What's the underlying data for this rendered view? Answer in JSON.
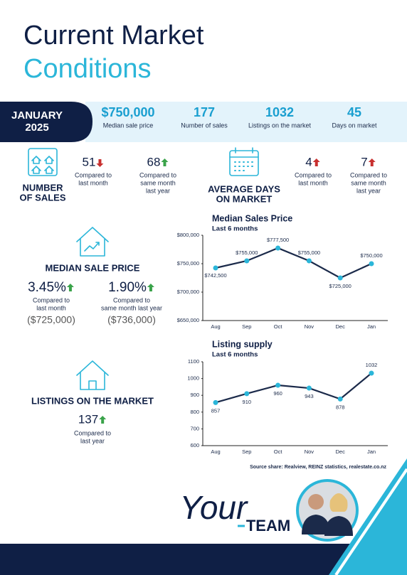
{
  "header": {
    "title_line1": "Current Market",
    "title_line2": "Conditions"
  },
  "banner": {
    "month": "JANUARY",
    "year": "2025",
    "stats": [
      {
        "value": "$750,000",
        "label": "Median sale price"
      },
      {
        "value": "177",
        "label": "Number of sales"
      },
      {
        "value": "1032",
        "label": "Listings on the market"
      },
      {
        "value": "45",
        "label": "Days on market"
      }
    ]
  },
  "number_of_sales": {
    "heading": [
      "NUMBER",
      "OF SALES"
    ],
    "items": [
      {
        "value": "51",
        "trend": "down",
        "color": "#c8302f",
        "caption": [
          "Compared to",
          "last month"
        ]
      },
      {
        "value": "68",
        "trend": "up",
        "color": "#3aa34a",
        "caption": [
          "Compared to",
          "same month",
          "last year"
        ]
      }
    ]
  },
  "average_days": {
    "heading": [
      "AVERAGE DAYS",
      "ON MARKET"
    ],
    "items": [
      {
        "value": "4",
        "trend": "up",
        "color": "#c8302f",
        "caption": [
          "Compared to",
          "last month"
        ]
      },
      {
        "value": "7",
        "trend": "up",
        "color": "#c8302f",
        "caption": [
          "Compared to",
          "same month",
          "last year"
        ]
      }
    ]
  },
  "median_sale_price": {
    "heading": [
      "MEDIAN SALE PRICE"
    ],
    "items": [
      {
        "value": "3.45%",
        "trend": "up",
        "color": "#3aa34a",
        "caption": [
          "Compared to",
          "last month"
        ],
        "note": "($725,000)"
      },
      {
        "value": "1.90%",
        "trend": "up",
        "color": "#3aa34a",
        "caption": [
          "Compared to",
          "same month last year"
        ],
        "note": "($736,000)"
      }
    ]
  },
  "listings": {
    "heading": [
      "LISTINGS ON THE MARKET"
    ],
    "items": [
      {
        "value": "137",
        "trend": "up",
        "color": "#3aa34a",
        "caption": [
          "Compared to",
          "last year"
        ]
      }
    ]
  },
  "chart_data": [
    {
      "type": "line",
      "title": "Median Sales Price",
      "subtitle": "Last 6 months",
      "categories": [
        "Aug",
        "Sep",
        "Oct",
        "Nov",
        "Dec",
        "Jan"
      ],
      "values": [
        742500,
        755000,
        777500,
        755000,
        725000,
        750000
      ],
      "value_labels": [
        "$742,500",
        "$755,000",
        "$777,500",
        "$755,000",
        "$725,000",
        "$750,000"
      ],
      "ylim": [
        650000,
        800000
      ],
      "yticks": [
        {
          "value": 650000,
          "label": "$650,000"
        },
        {
          "value": 700000,
          "label": "$700,000"
        },
        {
          "value": 750000,
          "label": "$750,000"
        },
        {
          "value": 800000,
          "label": "$800,000"
        }
      ],
      "color": "#1b2a4a",
      "marker_color": "#2bb6d9"
    },
    {
      "type": "line",
      "title": "Listing supply",
      "subtitle": "Last 6 months",
      "categories": [
        "Aug",
        "Sep",
        "Oct",
        "Nov",
        "Dec",
        "Jan"
      ],
      "values": [
        857,
        910,
        960,
        943,
        878,
        1032
      ],
      "ylim": [
        600,
        1100
      ],
      "yticks": [
        600,
        700,
        800,
        900,
        1000,
        1100
      ],
      "color": "#1b2a4a",
      "marker_color": "#2bb6d9"
    }
  ],
  "source": "Source share: Realview, REINZ statistics, realestate.co.nz",
  "logo": {
    "script": "Your",
    "word": "TEAM"
  }
}
